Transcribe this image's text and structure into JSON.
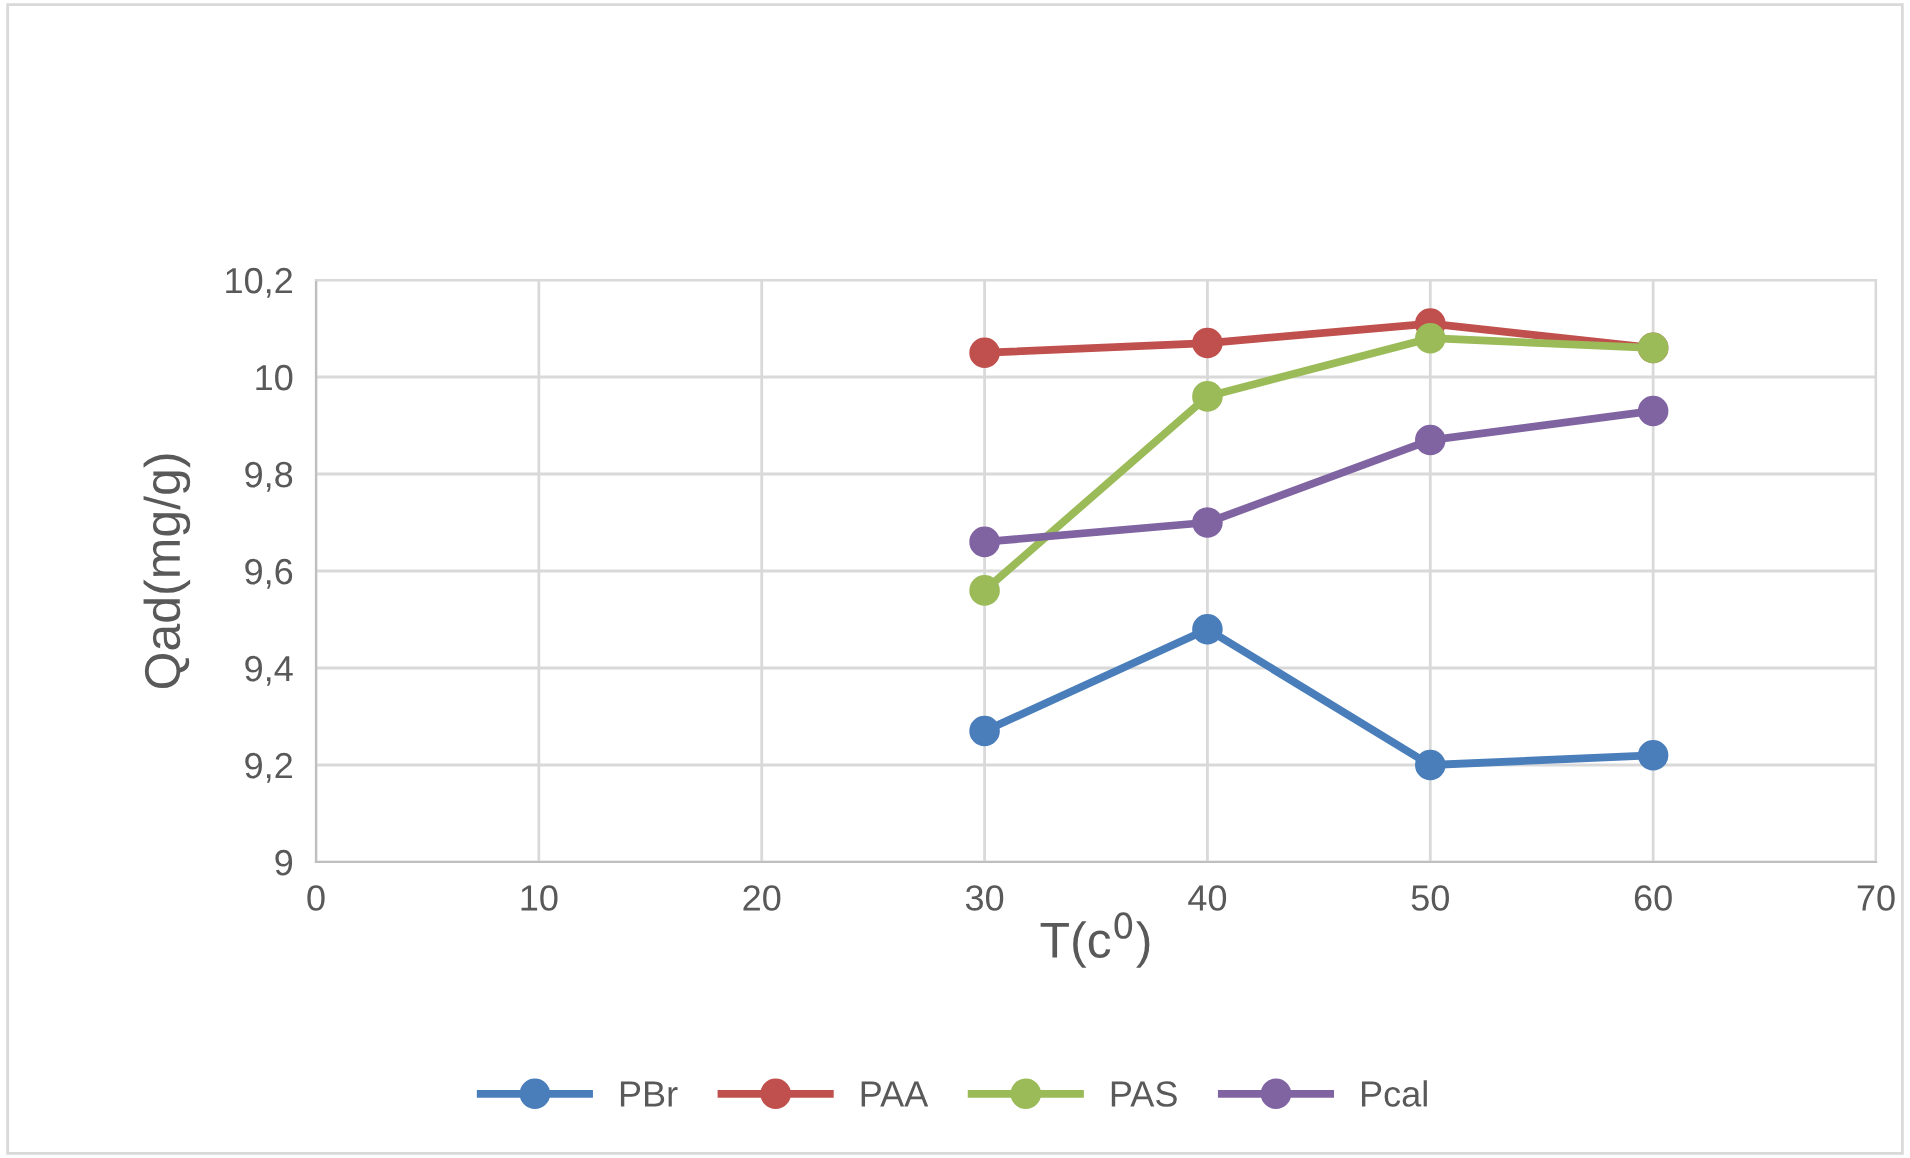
{
  "chart_data": {
    "type": "line",
    "xlabel": "T(c$^{0}$)",
    "ylabel": "Qad(mg/g)",
    "x": [
      30,
      40,
      50,
      60
    ],
    "series": [
      {
        "name": "PBr",
        "color": "#4a7ebb",
        "values": [
          9.27,
          9.48,
          9.2,
          9.22
        ]
      },
      {
        "name": "PAA",
        "color": "#c0504d",
        "values": [
          10.05,
          10.07,
          10.11,
          10.06
        ]
      },
      {
        "name": "PAS",
        "color": "#9bbb59",
        "values": [
          9.56,
          9.96,
          10.08,
          10.06
        ]
      },
      {
        "name": "Pcal",
        "color": "#8064a2",
        "values": [
          9.66,
          9.7,
          9.87,
          9.93
        ]
      }
    ],
    "xlim": [
      0,
      70
    ],
    "xticks": [
      0,
      10,
      20,
      30,
      40,
      50,
      60,
      70
    ],
    "ylim": [
      9,
      10.2
    ],
    "yticks": [
      9,
      {
        "value": 9.2,
        "label": "9,2"
      },
      {
        "value": 9.4,
        "label": "9,4"
      },
      {
        "value": 9.6,
        "label": "9,6"
      },
      {
        "value": 9.8,
        "label": "9,8"
      },
      10,
      {
        "value": 10.2,
        "label": "10,2"
      }
    ],
    "grid": true,
    "legend": "bottom",
    "marker": "circle",
    "line_style": "solid"
  }
}
